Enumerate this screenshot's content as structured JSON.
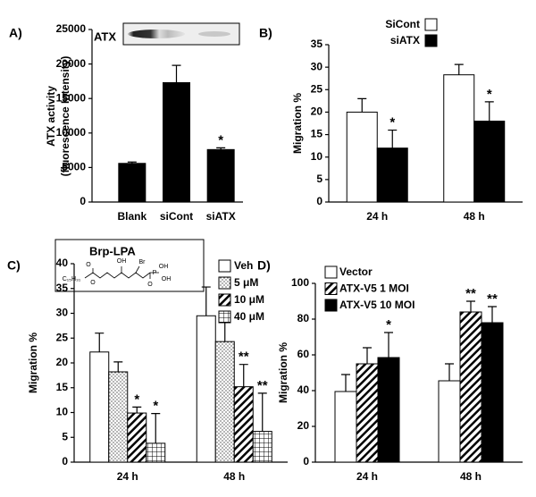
{
  "chart_data": [
    {
      "type": "bar",
      "panel": "A)",
      "ylabel": [
        "ATX activity",
        "(fluorescence Intensity)"
      ],
      "inset_label": "ATX",
      "categories": [
        "Blank",
        "siCont",
        "siATX"
      ],
      "series": [
        {
          "name": null,
          "color": "#000000",
          "pattern": "solid",
          "values": [
            5600,
            17300,
            7600
          ],
          "errors": [
            200,
            2500,
            250
          ],
          "stars": [
            null,
            null,
            "*"
          ]
        }
      ],
      "ylim": [
        0,
        25000
      ],
      "yticks": [
        0,
        5000,
        10000,
        15000,
        20000,
        25000
      ],
      "grid": false
    },
    {
      "type": "bar",
      "panel": "B)",
      "ylabel": [
        "Migration %"
      ],
      "legend": "top",
      "categories": [
        "24 h",
        "48 h"
      ],
      "series": [
        {
          "name": "SiCont",
          "color": "#ffffff",
          "pattern": "solid",
          "values": [
            20,
            28.3
          ],
          "errors": [
            3,
            2.3
          ],
          "stars": [
            null,
            null
          ]
        },
        {
          "name": "siATX",
          "color": "#000000",
          "pattern": "solid",
          "values": [
            12,
            18
          ],
          "errors": [
            4,
            4.3
          ],
          "stars": [
            "*",
            "*"
          ]
        }
      ],
      "ylim": [
        0,
        35
      ],
      "yticks": [
        0,
        5,
        10,
        15,
        20,
        25,
        30,
        35
      ],
      "grid": false
    },
    {
      "type": "bar",
      "panel": "C)",
      "ylabel": [
        "Migration %"
      ],
      "legend": "top-right",
      "inset_label": "Brp-LPA",
      "structure_labels": [
        "C₁₅H₃₁",
        "O",
        "O",
        "OH",
        "Br",
        "P",
        "OH",
        "OH",
        "O"
      ],
      "categories": [
        "24 h",
        "48 h"
      ],
      "series": [
        {
          "name": "Veh",
          "color": "#ffffff",
          "pattern": "solid",
          "values": [
            22.2,
            29.5
          ],
          "errors": [
            3.8,
            5.8
          ],
          "stars": [
            null,
            null
          ]
        },
        {
          "name": "5 μM",
          "color": "#000000",
          "pattern": "dots",
          "values": [
            18.2,
            24.3
          ],
          "errors": [
            2,
            4.5
          ],
          "stars": [
            null,
            null
          ]
        },
        {
          "name": "10 μM",
          "color": "#000000",
          "pattern": "hatch",
          "values": [
            9.9,
            15.2
          ],
          "errors": [
            1.2,
            4.5
          ],
          "stars": [
            "*",
            "**"
          ]
        },
        {
          "name": "40 μM",
          "color": "#000000",
          "pattern": "grid",
          "values": [
            3.8,
            6.2
          ],
          "errors": [
            6,
            7.7
          ],
          "stars": [
            "*",
            "**"
          ]
        }
      ],
      "ylim": [
        0,
        40
      ],
      "yticks": [
        0,
        5,
        10,
        15,
        20,
        25,
        30,
        35,
        40
      ],
      "grid": false
    },
    {
      "type": "bar",
      "panel": "D)",
      "ylabel": [
        "Migration %"
      ],
      "legend": "top-left",
      "categories": [
        "24 h",
        "48 h"
      ],
      "series": [
        {
          "name": "Vector",
          "color": "#ffffff",
          "pattern": "solid",
          "values": [
            39.5,
            45.5
          ],
          "errors": [
            9.5,
            9.5
          ],
          "stars": [
            null,
            null
          ]
        },
        {
          "name": "ATX-V5 1 MOI",
          "color": "#000000",
          "pattern": "hatch",
          "values": [
            55,
            84
          ],
          "errors": [
            9,
            6
          ],
          "stars": [
            null,
            "**"
          ]
        },
        {
          "name": "ATX-V5 10 MOI",
          "color": "#000000",
          "pattern": "solid",
          "values": [
            58.5,
            78
          ],
          "errors": [
            14,
            9
          ],
          "stars": [
            "*",
            "**"
          ]
        }
      ],
      "ylim": [
        0,
        100
      ],
      "yticks": [
        0,
        20,
        40,
        60,
        80,
        100
      ],
      "grid": false
    }
  ]
}
